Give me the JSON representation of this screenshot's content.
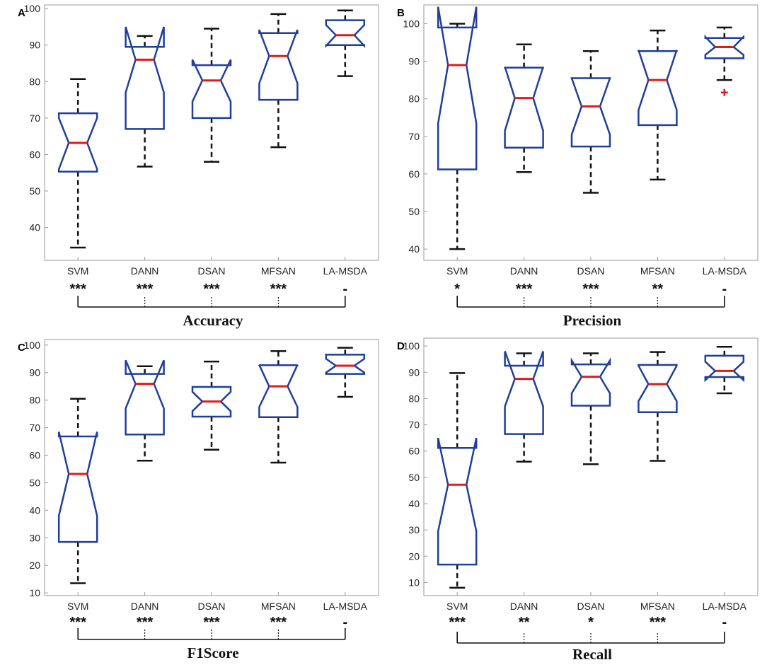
{
  "colors": {
    "box": "#1f3f99",
    "median": "#e01b1b",
    "whisker": "#111111",
    "outlier": "#e01b1b",
    "axis": "#999999"
  },
  "chart_data": [
    {
      "type": "box",
      "panel_label": "A",
      "title": "Accuracy",
      "categories": [
        "SVM",
        "DANN",
        "DSAN",
        "MFSAN",
        "LA-MSDA"
      ],
      "significance": [
        "***",
        "***",
        "***",
        "***",
        "-"
      ],
      "ylim": [
        31,
        101
      ],
      "yticks": [
        40,
        50,
        60,
        70,
        80,
        90,
        100
      ],
      "boxes": [
        {
          "whisker_low": 34.5,
          "q1": 55.3,
          "notch_low": 56.0,
          "median": 63.2,
          "notch_high": 70.0,
          "q3": 71.3,
          "whisker_high": 80.7,
          "outliers": []
        },
        {
          "whisker_low": 56.7,
          "q1": 67.0,
          "notch_low": 77.0,
          "median": 86.0,
          "notch_high": 95.0,
          "q3": 89.5,
          "whisker_high": 92.5,
          "outliers": []
        },
        {
          "whisker_low": 58.0,
          "q1": 70.0,
          "notch_low": 74.5,
          "median": 80.3,
          "notch_high": 86.0,
          "q3": 84.5,
          "whisker_high": 94.5,
          "outliers": []
        },
        {
          "whisker_low": 62.0,
          "q1": 75.0,
          "notch_low": 79.5,
          "median": 87.0,
          "notch_high": 94.2,
          "q3": 93.3,
          "whisker_high": 98.5,
          "outliers": []
        },
        {
          "whisker_low": 81.5,
          "q1": 90.0,
          "notch_low": 89.8,
          "median": 92.7,
          "notch_high": 95.5,
          "q3": 96.8,
          "whisker_high": 99.5,
          "outliers": []
        }
      ]
    },
    {
      "type": "box",
      "panel_label": "B",
      "title": "Precision",
      "categories": [
        "SVM",
        "DANN",
        "DSAN",
        "MFSAN",
        "LA-MSDA"
      ],
      "significance": [
        "*",
        "***",
        "***",
        "**",
        "-"
      ],
      "ylim": [
        37,
        105
      ],
      "yticks": [
        40,
        50,
        60,
        70,
        80,
        90,
        100
      ],
      "boxes": [
        {
          "whisker_low": 40.0,
          "q1": 61.2,
          "notch_low": 73.5,
          "median": 89.0,
          "notch_high": 104.5,
          "q3": 99.0,
          "whisker_high": 100.0,
          "outliers": []
        },
        {
          "whisker_low": 60.5,
          "q1": 67.0,
          "notch_low": 71.5,
          "median": 80.2,
          "notch_high": 88.5,
          "q3": 88.3,
          "whisker_high": 94.5,
          "outliers": []
        },
        {
          "whisker_low": 55.0,
          "q1": 67.3,
          "notch_low": 70.5,
          "median": 78.0,
          "notch_high": 85.5,
          "q3": 85.5,
          "whisker_high": 92.7,
          "outliers": []
        },
        {
          "whisker_low": 58.5,
          "q1": 73.0,
          "notch_low": 77.0,
          "median": 85.0,
          "notch_high": 93.0,
          "q3": 92.7,
          "whisker_high": 98.2,
          "outliers": []
        },
        {
          "whisker_low": 85.0,
          "q1": 90.8,
          "notch_low": 91.7,
          "median": 93.8,
          "notch_high": 96.5,
          "q3": 96.2,
          "whisker_high": 99.0,
          "outliers": [
            81.7
          ]
        }
      ]
    },
    {
      "type": "box",
      "panel_label": "C",
      "title": "F1Score",
      "categories": [
        "SVM",
        "DANN",
        "DSAN",
        "MFSAN",
        "LA-MSDA"
      ],
      "significance": [
        "***",
        "***",
        "***",
        "***",
        "-"
      ],
      "ylim": [
        9,
        102
      ],
      "yticks": [
        10,
        20,
        30,
        40,
        50,
        60,
        70,
        80,
        90,
        100
      ],
      "boxes": [
        {
          "whisker_low": 13.5,
          "q1": 28.5,
          "notch_low": 38.0,
          "median": 53.2,
          "notch_high": 68.5,
          "q3": 66.8,
          "whisker_high": 80.5,
          "outliers": []
        },
        {
          "whisker_low": 58.0,
          "q1": 67.5,
          "notch_low": 77.0,
          "median": 85.9,
          "notch_high": 94.5,
          "q3": 89.5,
          "whisker_high": 92.3,
          "outliers": []
        },
        {
          "whisker_low": 62.0,
          "q1": 74.0,
          "notch_low": 76.0,
          "median": 79.5,
          "notch_high": 83.0,
          "q3": 84.8,
          "whisker_high": 94.0,
          "outliers": []
        },
        {
          "whisker_low": 57.3,
          "q1": 73.8,
          "notch_low": 77.5,
          "median": 85.0,
          "notch_high": 92.8,
          "q3": 92.7,
          "whisker_high": 97.8,
          "outliers": []
        },
        {
          "whisker_low": 81.2,
          "q1": 89.5,
          "notch_low": 90.0,
          "median": 92.5,
          "notch_high": 95.0,
          "q3": 96.5,
          "whisker_high": 99.0,
          "outliers": []
        }
      ]
    },
    {
      "type": "box",
      "panel_label": "D",
      "title": "Recall",
      "categories": [
        "SVM",
        "DANN",
        "DSAN",
        "MFSAN",
        "LA-MSDA"
      ],
      "significance": [
        "***",
        "**",
        "*",
        "***",
        "-"
      ],
      "ylim": [
        5,
        103
      ],
      "yticks": [
        10,
        20,
        30,
        40,
        50,
        60,
        70,
        80,
        90,
        100
      ],
      "boxes": [
        {
          "whisker_low": 8.0,
          "q1": 16.8,
          "notch_low": 29.5,
          "median": 47.2,
          "notch_high": 65.0,
          "q3": 61.2,
          "whisker_high": 89.7,
          "outliers": []
        },
        {
          "whisker_low": 56.0,
          "q1": 66.5,
          "notch_low": 77.0,
          "median": 87.5,
          "notch_high": 98.0,
          "q3": 92.5,
          "whisker_high": 97.2,
          "outliers": []
        },
        {
          "whisker_low": 55.0,
          "q1": 77.3,
          "notch_low": 82.0,
          "median": 88.3,
          "notch_high": 94.5,
          "q3": 93.0,
          "whisker_high": 97.2,
          "outliers": []
        },
        {
          "whisker_low": 56.3,
          "q1": 74.8,
          "notch_low": 79.0,
          "median": 85.5,
          "notch_high": 92.5,
          "q3": 92.8,
          "whisker_high": 97.7,
          "outliers": []
        },
        {
          "whisker_low": 82.0,
          "q1": 88.2,
          "notch_low": 87.0,
          "median": 90.5,
          "notch_high": 94.0,
          "q3": 96.3,
          "whisker_high": 99.7,
          "outliers": []
        }
      ]
    }
  ]
}
